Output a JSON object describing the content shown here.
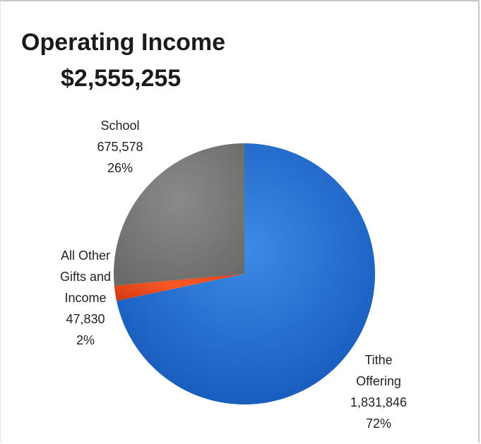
{
  "chart_data": {
    "type": "pie",
    "title": "Operating Income",
    "subtitle": "$2,555,255",
    "slices": [
      {
        "label": [
          "Tithe",
          "Offering"
        ],
        "value": 1831846,
        "value_text": "1,831,846",
        "percent_text": "72%",
        "color": "#1f6fd0"
      },
      {
        "label": [
          "All Other",
          "Gifts and",
          "Income"
        ],
        "value": 47830,
        "value_text": "47,830",
        "percent_text": "2%",
        "color": "#e8451c"
      },
      {
        "label": [
          "School"
        ],
        "value": 675578,
        "value_text": "675,578",
        "percent_text": "26%",
        "color": "#7a7a7a"
      }
    ],
    "legend": "none",
    "grid": false
  }
}
